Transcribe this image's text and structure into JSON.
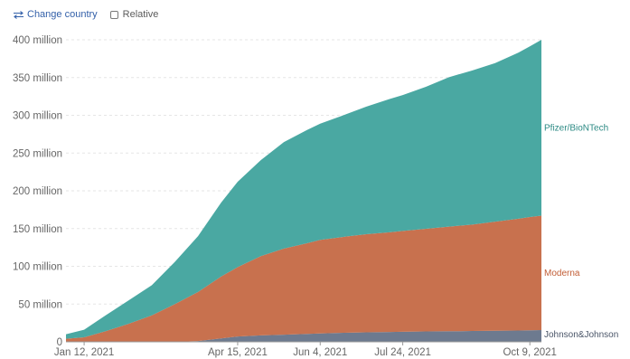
{
  "controls": {
    "change_country_icon": "swap-arrows-icon",
    "change_country_label": "Change country",
    "relative_label": "Relative",
    "relative_checked": false
  },
  "chart_data": {
    "type": "area",
    "stacked": true,
    "title": "",
    "xlabel": "",
    "ylabel": "",
    "ylim": [
      0,
      400000000
    ],
    "y_ticks": [
      {
        "value": 0,
        "label": "0"
      },
      {
        "value": 50000000,
        "label": "50 million"
      },
      {
        "value": 100000000,
        "label": "100 million"
      },
      {
        "value": 150000000,
        "label": "150 million"
      },
      {
        "value": 200000000,
        "label": "200 million"
      },
      {
        "value": 250000000,
        "label": "250 million"
      },
      {
        "value": 300000000,
        "label": "300 million"
      },
      {
        "value": 350000000,
        "label": "350 million"
      },
      {
        "value": 400000000,
        "label": "400 million"
      }
    ],
    "x_range": [
      "2021-01-01",
      "2021-10-16"
    ],
    "x_ticks": [
      {
        "date": "2021-01-12",
        "label": "Jan 12, 2021"
      },
      {
        "date": "2021-04-15",
        "label": "Apr 15, 2021"
      },
      {
        "date": "2021-06-04",
        "label": "Jun 4, 2021"
      },
      {
        "date": "2021-07-24",
        "label": "Jul 24, 2021"
      },
      {
        "date": "2021-10-09",
        "label": "Oct 9, 2021"
      }
    ],
    "grid": true,
    "legend": "inline-right",
    "x": [
      "2021-01-01",
      "2021-01-12",
      "2021-01-25",
      "2021-02-08",
      "2021-02-22",
      "2021-03-08",
      "2021-03-22",
      "2021-04-05",
      "2021-04-15",
      "2021-04-29",
      "2021-05-13",
      "2021-05-27",
      "2021-06-04",
      "2021-06-18",
      "2021-07-02",
      "2021-07-16",
      "2021-07-24",
      "2021-08-07",
      "2021-08-21",
      "2021-09-04",
      "2021-09-18",
      "2021-10-02",
      "2021-10-09",
      "2021-10-16"
    ],
    "series": [
      {
        "name": "Johnson&Johnson",
        "color": "#6d7a8f",
        "values": [
          0,
          0,
          0,
          0,
          0,
          0,
          1000000,
          4500000,
          7000000,
          8500000,
          9500000,
          10500000,
          11000000,
          12000000,
          12500000,
          13000000,
          13300000,
          13700000,
          14000000,
          14300000,
          14600000,
          15000000,
          15300000,
          15500000
        ]
      },
      {
        "name": "Moderna",
        "color": "#c8714e",
        "values": [
          4000000,
          6000000,
          14000000,
          24000000,
          35000000,
          50000000,
          65000000,
          82000000,
          92000000,
          105000000,
          114000000,
          120000000,
          124000000,
          127000000,
          130000000,
          132000000,
          133500000,
          136000000,
          138500000,
          141000000,
          144500000,
          148000000,
          150000000,
          151500000
        ]
      },
      {
        "name": "Pfizer/BioNTech",
        "color": "#4aa8a2",
        "values": [
          6000000,
          10000000,
          21000000,
          31000000,
          40000000,
          56000000,
          74000000,
          98000000,
          113000000,
          127000000,
          141000000,
          150000000,
          154000000,
          161000000,
          169000000,
          176500000,
          180000000,
          188000000,
          198000000,
          204000000,
          210000000,
          220000000,
          226000000,
          233000000
        ]
      }
    ]
  }
}
